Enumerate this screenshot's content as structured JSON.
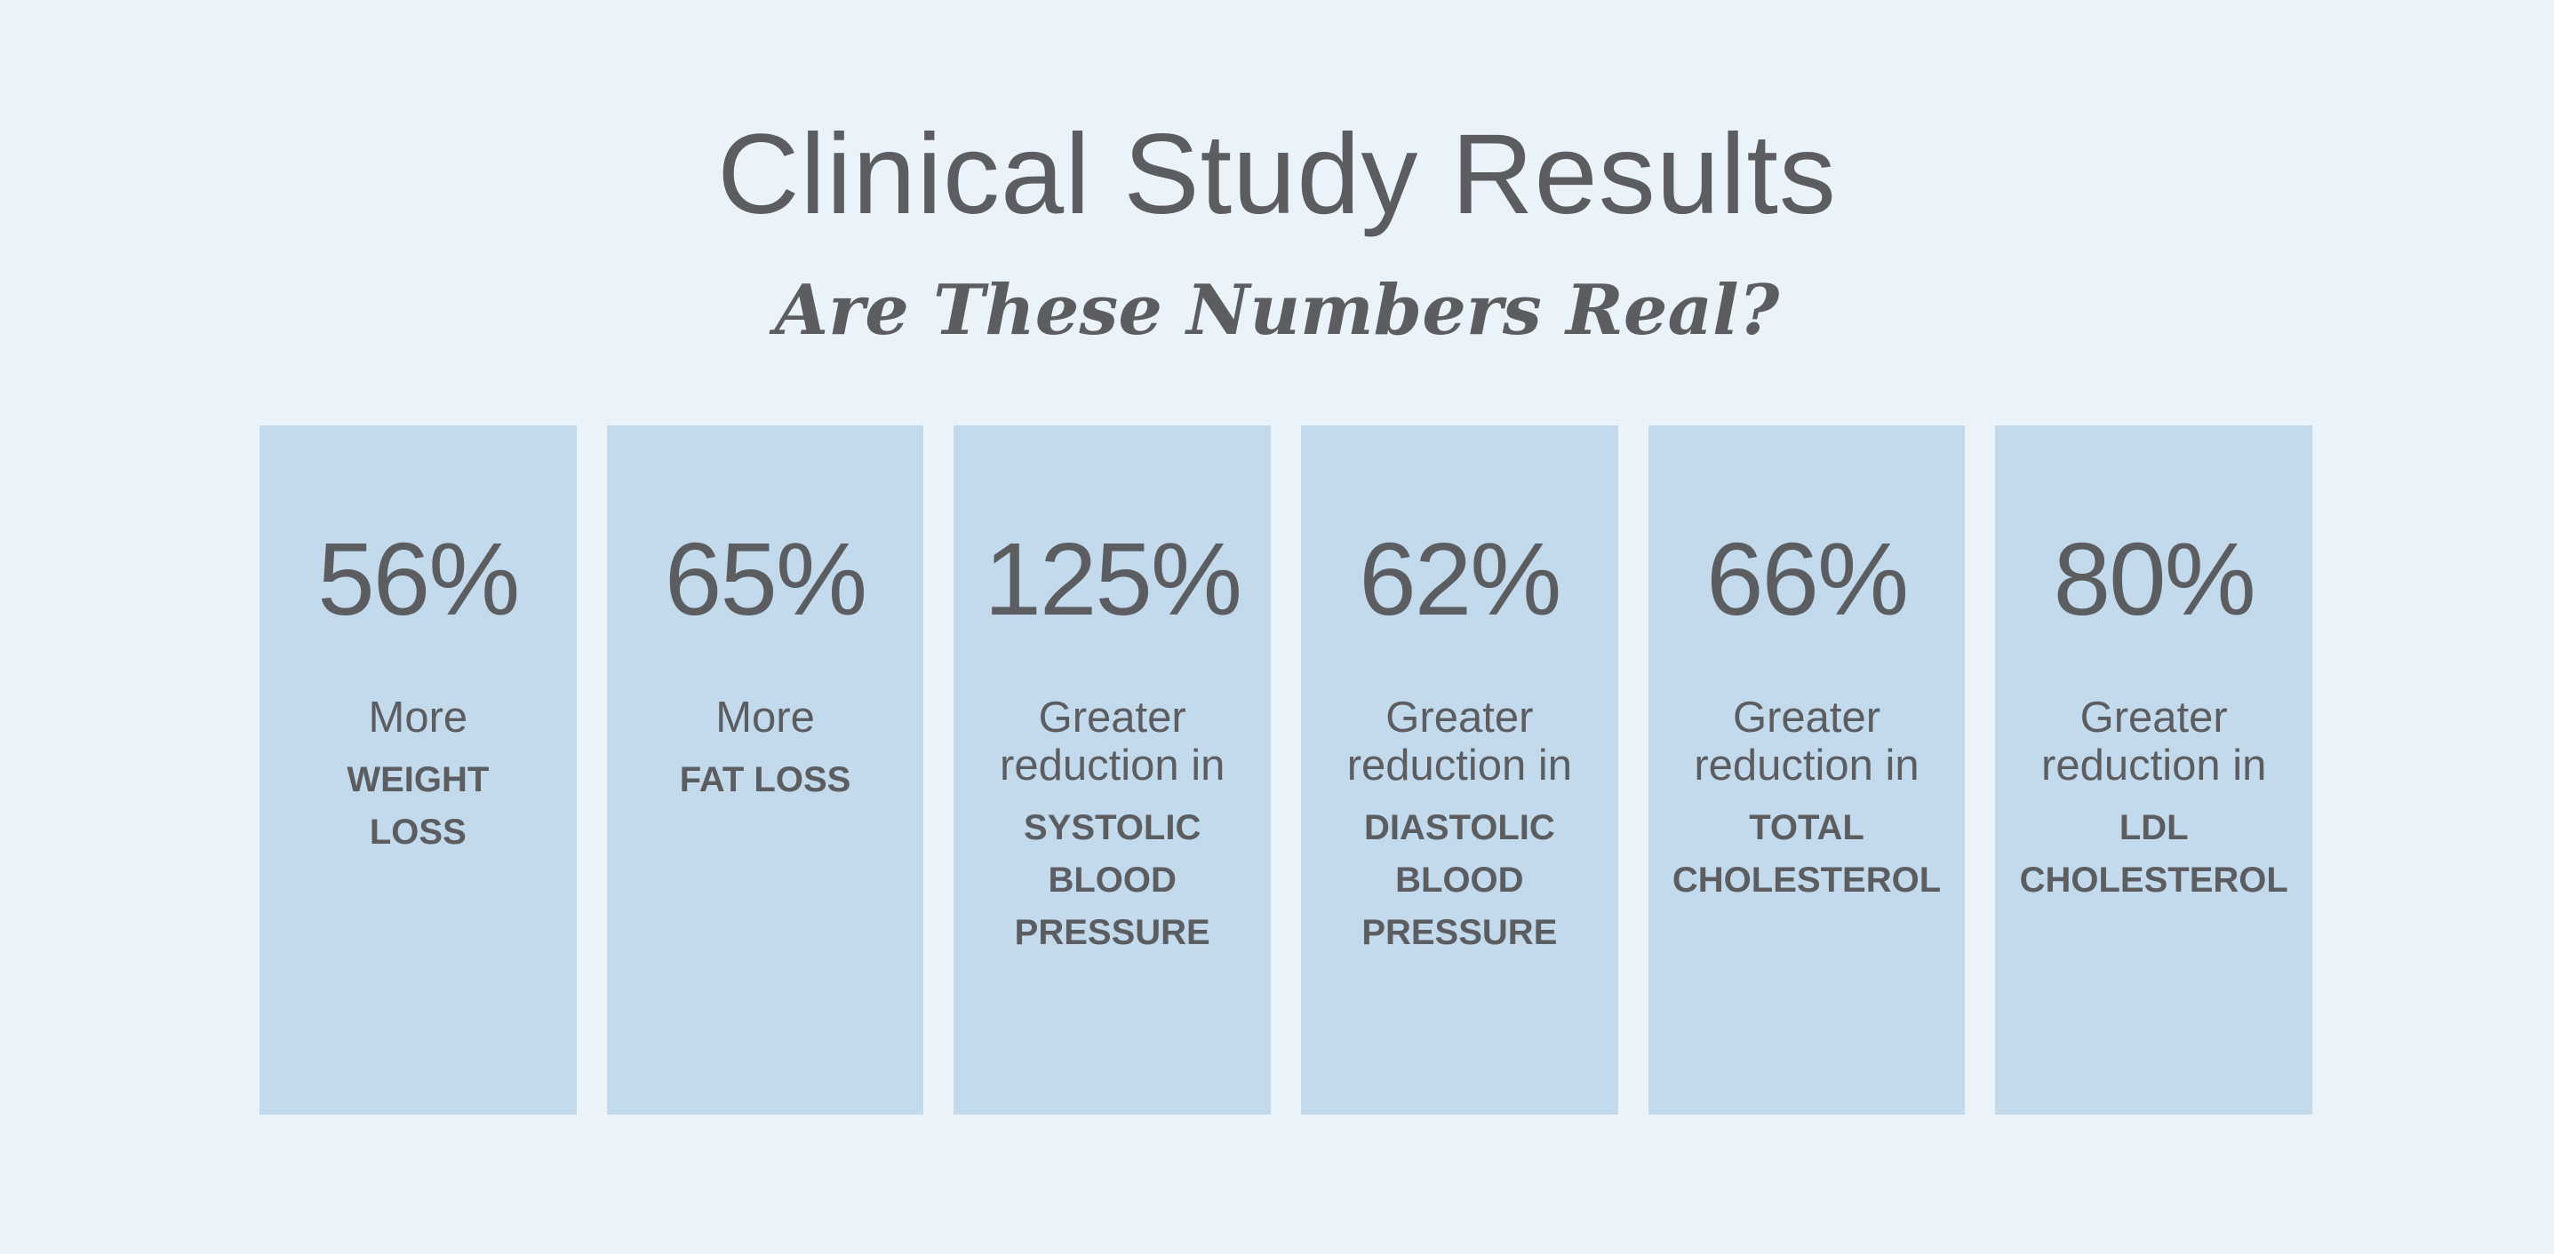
{
  "header": {
    "title": "Clinical Study Results",
    "subtitle": "Are These Numbers Real?"
  },
  "cards": [
    {
      "value": "56%",
      "lead": [
        "More"
      ],
      "metric": [
        "WEIGHT",
        "LOSS"
      ]
    },
    {
      "value": "65%",
      "lead": [
        "More"
      ],
      "metric": [
        "FAT LOSS"
      ]
    },
    {
      "value": "125%",
      "lead": [
        "Greater",
        "reduction in"
      ],
      "metric": [
        "SYSTOLIC",
        "BLOOD",
        "PRESSURE"
      ]
    },
    {
      "value": "62%",
      "lead": [
        "Greater",
        "reduction in"
      ],
      "metric": [
        "DIASTOLIC",
        "BLOOD",
        "PRESSURE"
      ]
    },
    {
      "value": "66%",
      "lead": [
        "Greater",
        "reduction in"
      ],
      "metric": [
        "TOTAL",
        "CHOLESTEROL"
      ]
    },
    {
      "value": "80%",
      "lead": [
        "Greater",
        "reduction in"
      ],
      "metric": [
        "LDL",
        "CHOLESTEROL"
      ]
    }
  ],
  "colors": {
    "background": "#ebf3fa",
    "card": "#c2daec",
    "text": "#5b5d61"
  }
}
